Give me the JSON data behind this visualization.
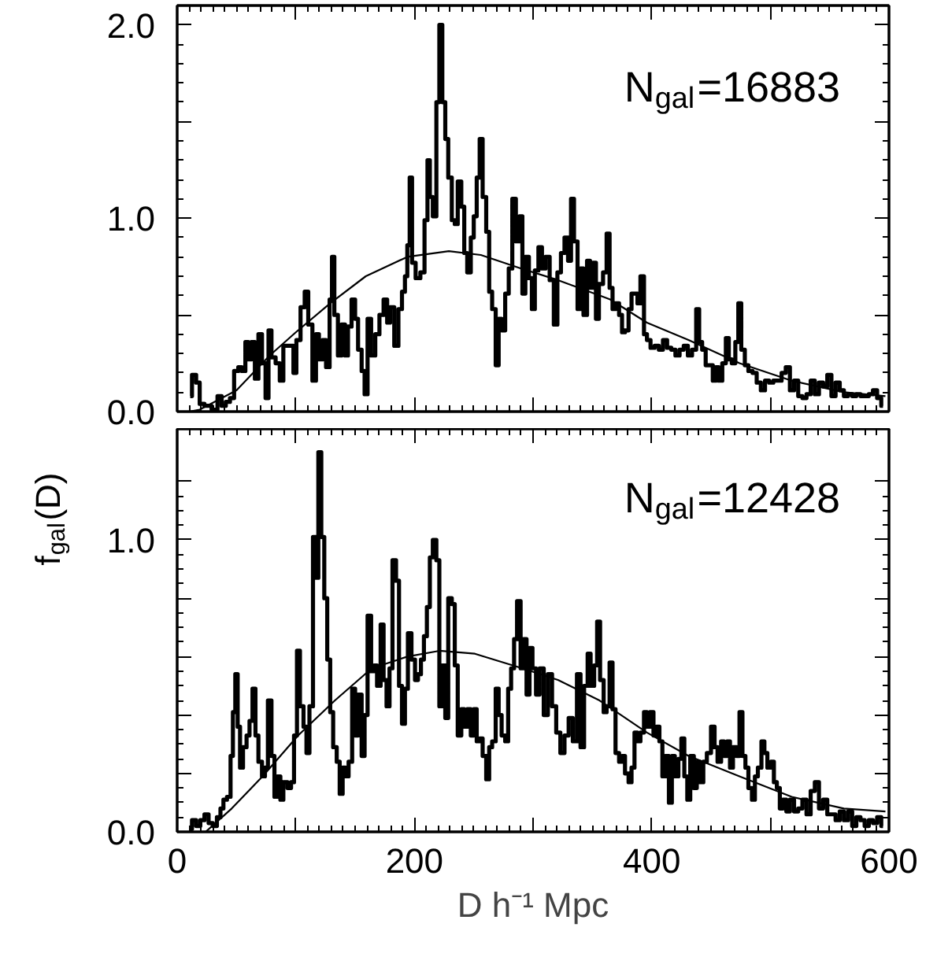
{
  "chart_data": [
    {
      "type": "step",
      "xlim": [
        0,
        600
      ],
      "ylim": [
        0,
        2.1
      ],
      "xticks": [
        0,
        {
          "value": 100,
          "label": null
        },
        200,
        {
          "value": 300,
          "label": null
        },
        400,
        {
          "value": 500,
          "label": null
        },
        600
      ],
      "yticks": [
        {
          "value": 0,
          "label": "0.0"
        },
        {
          "value": 0.5,
          "label": null
        },
        {
          "value": 1,
          "label": "1.0"
        },
        {
          "value": 1.5,
          "label": null
        },
        {
          "value": 2,
          "label": "2.0"
        }
      ],
      "tick_labels": "y",
      "annotations": [
        "N$_{gal}$=16883"
      ],
      "series": [
        {
          "type": "step",
          "color": "#000000",
          "x": [
            11,
            14,
            18,
            20,
            26,
            32,
            36,
            39,
            43,
            46,
            50,
            53,
            56,
            59,
            61,
            64,
            67,
            70,
            73,
            76,
            78,
            81,
            85,
            88,
            91,
            97,
            99,
            102,
            106,
            109,
            112,
            116,
            118,
            121,
            124,
            127,
            130,
            131,
            134,
            137,
            140,
            143,
            145,
            149,
            151,
            154,
            157,
            159,
            162,
            165,
            169,
            172,
            176,
            178,
            181,
            185,
            188,
            191,
            193,
            195,
            197,
            199,
            203,
            207,
            210,
            212,
            214,
            217,
            220,
            222,
            225,
            227,
            230,
            233,
            235,
            238,
            241,
            243,
            246,
            249,
            251,
            254,
            256,
            259,
            262,
            264,
            267,
            270,
            272,
            275,
            278,
            281,
            284,
            287,
            290,
            292,
            295,
            298,
            300,
            303,
            306,
            309,
            312,
            316,
            319,
            322,
            325,
            328,
            331,
            333,
            336,
            339,
            341,
            344,
            347,
            349,
            352,
            354,
            357,
            361,
            363,
            366,
            368,
            371,
            374,
            376,
            379,
            382,
            384,
            387,
            389,
            392,
            395,
            397,
            401,
            404,
            408,
            411,
            415,
            418,
            422,
            425,
            429,
            432,
            436,
            439,
            441,
            444,
            447,
            450,
            453,
            455,
            458,
            461,
            464,
            466,
            469,
            472,
            474,
            477,
            480,
            483,
            487,
            490,
            494,
            497,
            501,
            504,
            508,
            511,
            515,
            518,
            522,
            525,
            529,
            532,
            536,
            539,
            543,
            546,
            550,
            553,
            557,
            560,
            564,
            567,
            571,
            574,
            578,
            581,
            585,
            588,
            592,
            595
          ],
          "values": [
            0.08,
            0.19,
            0.15,
            0.04,
            0.03,
            0.01,
            0.08,
            0.03,
            0.05,
            0.07,
            0.21,
            0.23,
            0.21,
            0.36,
            0.27,
            0.36,
            0.17,
            0.4,
            0.25,
            0.07,
            0.42,
            0.28,
            0.25,
            0.16,
            0.34,
            0.34,
            0.2,
            0.37,
            0.54,
            0.62,
            0.45,
            0.16,
            0.4,
            0.27,
            0.37,
            0.23,
            0.58,
            0.8,
            0.5,
            0.29,
            0.45,
            0.29,
            0.44,
            0.58,
            0.48,
            0.32,
            0.21,
            0.09,
            0.48,
            0.29,
            0.4,
            0.5,
            0.58,
            0.46,
            0.54,
            0.34,
            0.53,
            0.62,
            0.7,
            0.86,
            1.21,
            0.77,
            0.69,
            0.72,
            0.99,
            1.3,
            1.11,
            1.01,
            1.6,
            2.0,
            1.6,
            1.41,
            1.21,
            0.99,
            0.97,
            1.19,
            1.06,
            0.82,
            0.72,
            0.9,
            1.01,
            1.21,
            1.41,
            1.11,
            0.93,
            0.62,
            0.53,
            0.24,
            0.48,
            0.42,
            0.61,
            0.74,
            1.1,
            0.88,
            1.01,
            0.61,
            0.8,
            0.69,
            0.53,
            0.73,
            0.85,
            0.74,
            0.8,
            0.68,
            0.45,
            0.72,
            0.82,
            0.9,
            0.78,
            1.1,
            0.88,
            0.53,
            0.74,
            0.5,
            0.78,
            0.64,
            0.77,
            0.48,
            0.66,
            0.72,
            0.92,
            0.64,
            0.53,
            0.56,
            0.5,
            0.41,
            0.42,
            0.53,
            0.61,
            0.61,
            0.56,
            0.7,
            0.4,
            0.37,
            0.33,
            0.34,
            0.32,
            0.37,
            0.33,
            0.32,
            0.29,
            0.32,
            0.34,
            0.29,
            0.32,
            0.53,
            0.36,
            0.32,
            0.24,
            0.24,
            0.16,
            0.23,
            0.16,
            0.25,
            0.38,
            0.27,
            0.25,
            0.36,
            0.56,
            0.32,
            0.24,
            0.21,
            0.2,
            0.15,
            0.11,
            0.16,
            0.15,
            0.16,
            0.16,
            0.2,
            0.23,
            0.11,
            0.16,
            0.08,
            0.07,
            0.09,
            0.16,
            0.09,
            0.15,
            0.13,
            0.19,
            0.08,
            0.15,
            0.11,
            0.08,
            0.09,
            0.08,
            0.09,
            0.08,
            0.08,
            0.09,
            0.11,
            0.07,
            0.03
          ]
        },
        {
          "type": "line",
          "color": "#000000",
          "x": [
            10,
            19,
            50,
            78,
            100,
            129,
            159,
            194,
            229,
            256,
            290,
            321,
            365,
            396,
            431,
            474,
            518,
            562,
            597
          ],
          "values": [
            0.0,
            0.01,
            0.11,
            0.29,
            0.41,
            0.56,
            0.7,
            0.8,
            0.83,
            0.81,
            0.74,
            0.68,
            0.58,
            0.46,
            0.37,
            0.25,
            0.16,
            0.1,
            0.08
          ]
        }
      ]
    },
    {
      "type": "step",
      "xlim": [
        0,
        600
      ],
      "ylim": [
        0,
        1.38
      ],
      "xticks": [
        0,
        {
          "value": 100,
          "label": null
        },
        200,
        {
          "value": 300,
          "label": null
        },
        400,
        {
          "value": 500,
          "label": null
        },
        600
      ],
      "yticks": [
        {
          "value": 0,
          "label": "0.0"
        },
        {
          "value": 0.2,
          "label": null
        },
        {
          "value": 0.4,
          "label": null
        },
        {
          "value": 0.6,
          "label": null
        },
        {
          "value": 0.8,
          "label": null
        },
        {
          "value": 1,
          "label": "1.0"
        },
        {
          "value": 1.2,
          "label": null
        }
      ],
      "xlabel": "D h⁻¹ Mpc",
      "ylabel": "f$_{gal}$(D)",
      "annotations": [
        "N$_{gal}$=12428"
      ],
      "series": [
        {
          "type": "step",
          "color": "#000000",
          "x": [
            11,
            14,
            18,
            21,
            25,
            28,
            32,
            35,
            38,
            40,
            44,
            46,
            48,
            50,
            52,
            54,
            57,
            60,
            62,
            65,
            67,
            70,
            73,
            75,
            78,
            81,
            83,
            86,
            88,
            91,
            95,
            97,
            100,
            102,
            105,
            108,
            110,
            113,
            116,
            118,
            120,
            123,
            125,
            128,
            130,
            133,
            136,
            138,
            141,
            143,
            146,
            149,
            151,
            154,
            157,
            159,
            162,
            165,
            167,
            170,
            173,
            175,
            178,
            180,
            183,
            186,
            188,
            191,
            193,
            196,
            199,
            202,
            204,
            207,
            209,
            212,
            214,
            217,
            220,
            222,
            225,
            227,
            230,
            233,
            235,
            238,
            241,
            243,
            246,
            249,
            251,
            254,
            256,
            259,
            262,
            264,
            267,
            270,
            272,
            275,
            278,
            280,
            283,
            285,
            288,
            291,
            293,
            296,
            298,
            301,
            304,
            307,
            311,
            314,
            318,
            321,
            325,
            328,
            332,
            335,
            339,
            341,
            345,
            347,
            350,
            353,
            355,
            358,
            361,
            363,
            366,
            368,
            371,
            374,
            376,
            379,
            382,
            384,
            387,
            389,
            392,
            395,
            397,
            400,
            403,
            405,
            408,
            410,
            413,
            416,
            418,
            421,
            424,
            426,
            429,
            431,
            434,
            437,
            439,
            442,
            445,
            448,
            452,
            454,
            457,
            460,
            462,
            465,
            467,
            470,
            473,
            475,
            478,
            480,
            483,
            486,
            488,
            491,
            494,
            496,
            499,
            502,
            504,
            507,
            509,
            512,
            515,
            518,
            522,
            525,
            529,
            532,
            536,
            539,
            543,
            546,
            550,
            553,
            557,
            560,
            564,
            567,
            571,
            574,
            578,
            581,
            585,
            588,
            592,
            595
          ],
          "values": [
            0.01,
            0.04,
            0.02,
            0.04,
            0.06,
            0.03,
            0.02,
            0.05,
            0.08,
            0.11,
            0.12,
            0.26,
            0.41,
            0.54,
            0.36,
            0.22,
            0.29,
            0.33,
            0.38,
            0.49,
            0.33,
            0.24,
            0.19,
            0.22,
            0.45,
            0.26,
            0.12,
            0.19,
            0.11,
            0.17,
            0.15,
            0.17,
            0.33,
            0.62,
            0.43,
            0.36,
            0.27,
            0.43,
            1.01,
            0.87,
            1.3,
            1.01,
            0.8,
            0.59,
            0.41,
            0.29,
            0.24,
            0.13,
            0.22,
            0.19,
            0.24,
            0.49,
            0.33,
            0.47,
            0.26,
            0.4,
            0.74,
            0.55,
            0.57,
            0.5,
            0.71,
            0.52,
            0.43,
            0.56,
            0.93,
            0.86,
            0.5,
            0.37,
            0.49,
            0.68,
            0.59,
            0.52,
            0.54,
            0.59,
            0.67,
            0.77,
            0.94,
            1.0,
            0.93,
            0.43,
            0.57,
            0.39,
            0.8,
            0.78,
            0.57,
            0.33,
            0.42,
            0.36,
            0.42,
            0.33,
            0.42,
            0.31,
            0.32,
            0.26,
            0.18,
            0.29,
            0.31,
            0.49,
            0.4,
            0.33,
            0.31,
            0.49,
            0.56,
            0.66,
            0.79,
            0.56,
            0.66,
            0.47,
            0.63,
            0.56,
            0.47,
            0.56,
            0.4,
            0.54,
            0.43,
            0.34,
            0.27,
            0.33,
            0.39,
            0.31,
            0.54,
            0.29,
            0.5,
            0.61,
            0.5,
            0.57,
            0.72,
            0.52,
            0.41,
            0.43,
            0.58,
            0.42,
            0.27,
            0.24,
            0.26,
            0.2,
            0.17,
            0.22,
            0.34,
            0.31,
            0.34,
            0.41,
            0.36,
            0.41,
            0.33,
            0.36,
            0.31,
            0.19,
            0.26,
            0.1,
            0.26,
            0.19,
            0.25,
            0.32,
            0.19,
            0.11,
            0.26,
            0.15,
            0.24,
            0.17,
            0.24,
            0.27,
            0.36,
            0.29,
            0.24,
            0.31,
            0.26,
            0.31,
            0.22,
            0.29,
            0.26,
            0.41,
            0.26,
            0.22,
            0.15,
            0.11,
            0.19,
            0.22,
            0.31,
            0.27,
            0.22,
            0.24,
            0.17,
            0.15,
            0.08,
            0.11,
            0.07,
            0.11,
            0.07,
            0.08,
            0.11,
            0.06,
            0.14,
            0.17,
            0.08,
            0.11,
            0.06,
            0.06,
            0.04,
            0.07,
            0.04,
            0.07,
            0.02,
            0.05,
            0.04,
            0.02,
            0.04,
            0.03,
            0.05,
            0.02
          ]
        },
        {
          "type": "line",
          "color": "#000000",
          "x": [
            24,
            46,
            72,
            102,
            133,
            164,
            194,
            221,
            251,
            291,
            321,
            356,
            396,
            431,
            474,
            518,
            562,
            597
          ],
          "values": [
            0.0,
            0.08,
            0.19,
            0.33,
            0.45,
            0.56,
            0.6,
            0.62,
            0.61,
            0.56,
            0.52,
            0.45,
            0.34,
            0.26,
            0.19,
            0.12,
            0.08,
            0.07
          ]
        }
      ]
    }
  ]
}
